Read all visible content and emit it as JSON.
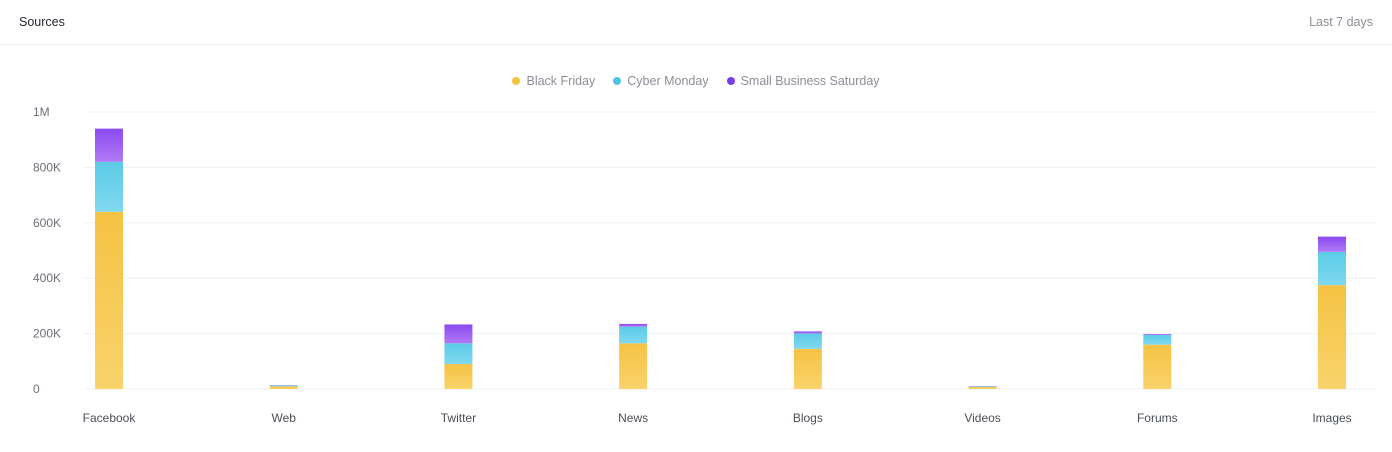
{
  "header": {
    "title": "Sources",
    "range": "Last 7 days"
  },
  "colors": {
    "black_friday_top": "#f5c344",
    "black_friday_bottom": "#f9d36b",
    "cyber_monday_top": "#5ccbe6",
    "cyber_monday_bottom": "#7fd8ef",
    "small_business_top": "#8b4af0",
    "small_business_bottom": "#b07af5",
    "legend_black_friday": "#f5c344",
    "legend_cyber_monday": "#52c6e1",
    "legend_small_business": "#7a3ce8",
    "grid": "#eef0f3",
    "tick_text": "#6b6f78",
    "category_text": "#4a4e57"
  },
  "chart_data": {
    "type": "bar",
    "stacked": true,
    "categories": [
      "Facebook",
      "Web",
      "Twitter",
      "News",
      "Blogs",
      "Videos",
      "Forums",
      "Images"
    ],
    "series": [
      {
        "name": "Black Friday",
        "values": [
          640000,
          10000,
          90000,
          165000,
          145000,
          7000,
          160000,
          375000
        ]
      },
      {
        "name": "Cyber Monday",
        "values": [
          180000,
          3000,
          75000,
          60000,
          55000,
          2000,
          35000,
          120000
        ]
      },
      {
        "name": "Small Business Saturday",
        "values": [
          120000,
          1000,
          68000,
          10000,
          8000,
          1000,
          3000,
          55000
        ]
      }
    ],
    "ylim": [
      0,
      1000000
    ],
    "yticks": [
      0,
      200000,
      400000,
      600000,
      800000,
      1000000
    ],
    "ytick_labels": [
      "0",
      "200K",
      "400K",
      "600K",
      "800K",
      "1M"
    ],
    "grid": true,
    "legend_position": "top-center"
  }
}
